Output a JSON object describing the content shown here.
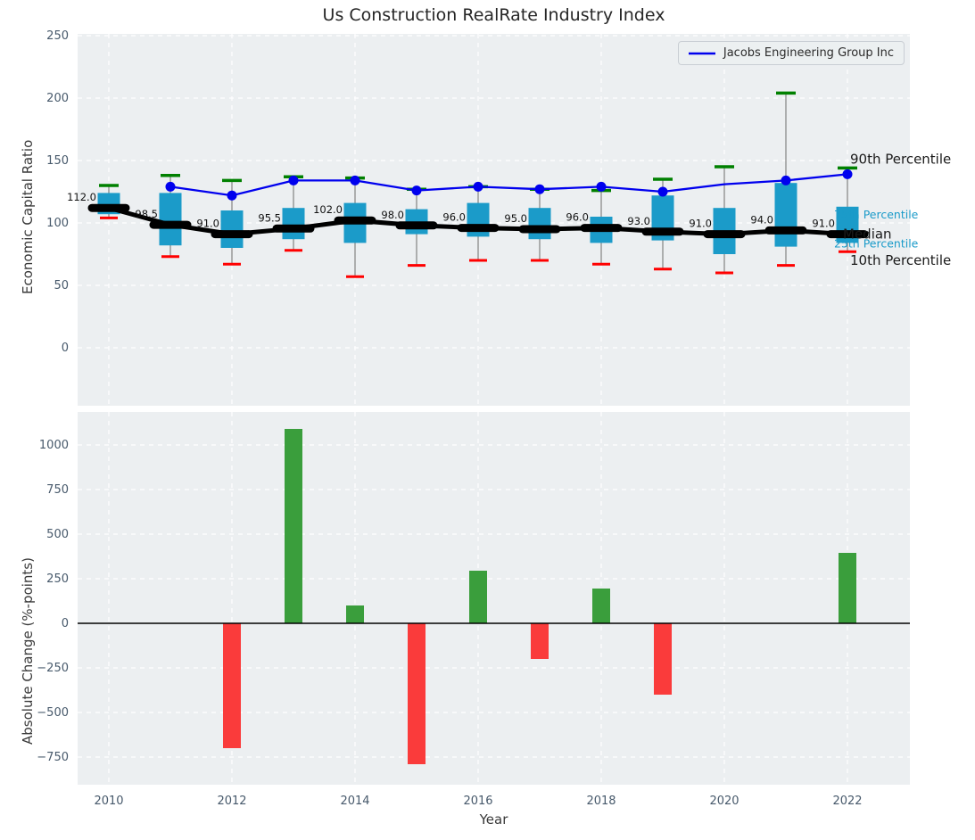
{
  "title": "Us Construction RealRate Industry Index",
  "legend": {
    "series_label": "Jacobs Engineering Group Inc"
  },
  "colors": {
    "plot_background": "#eceff1",
    "grid": "#ffffff",
    "box_fill": "#1b9bc9",
    "whisker": "#8a8a8a",
    "cap_90th": "#008000",
    "cap_10th": "#ff0000",
    "median": "#000000",
    "company_line": "#0000ee",
    "bar_positive": "#3a9e3c",
    "bar_negative": "#fa3b3b",
    "tick_text": "#47596b",
    "annotation_small": "#1b9bc9"
  },
  "chart_data": [
    {
      "type": "boxplot",
      "title": "Us Construction RealRate Industry Index",
      "ylabel": "Economic Capital Ratio",
      "ylim": [
        -46,
        252
      ],
      "yticks": [
        0,
        50,
        100,
        150,
        200,
        250
      ],
      "grid": true,
      "legend_position": "upper right",
      "boxes": [
        {
          "year": 2010,
          "median": 112.0,
          "label": "112.0",
          "p10": 104,
          "p25": 107,
          "p75": 124,
          "p90": 130
        },
        {
          "year": 2011,
          "median": 98.5,
          "label": "98.5",
          "p10": 73,
          "p25": 82,
          "p75": 124,
          "p90": 138
        },
        {
          "year": 2012,
          "median": 91.0,
          "label": "91.0",
          "p10": 67,
          "p25": 80,
          "p75": 110,
          "p90": 134
        },
        {
          "year": 2013,
          "median": 95.5,
          "label": "95.5",
          "p10": 78,
          "p25": 87,
          "p75": 112,
          "p90": 137
        },
        {
          "year": 2014,
          "median": 102.0,
          "label": "102.0",
          "p10": 57,
          "p25": 84,
          "p75": 116,
          "p90": 136
        },
        {
          "year": 2015,
          "median": 98.0,
          "label": "98.0",
          "p10": 66,
          "p25": 91,
          "p75": 111,
          "p90": 127
        },
        {
          "year": 2016,
          "median": 96.0,
          "label": "96.0",
          "p10": 70,
          "p25": 89,
          "p75": 116,
          "p90": 129
        },
        {
          "year": 2017,
          "median": 95.0,
          "label": "95.0",
          "p10": 70,
          "p25": 87,
          "p75": 112,
          "p90": 127
        },
        {
          "year": 2018,
          "median": 96.0,
          "label": "96.0",
          "p10": 67,
          "p25": 84,
          "p75": 105,
          "p90": 126
        },
        {
          "year": 2019,
          "median": 93.0,
          "label": "93.0",
          "p10": 63,
          "p25": 86,
          "p75": 122,
          "p90": 135
        },
        {
          "year": 2020,
          "median": 91.0,
          "label": "91.0",
          "p10": 60,
          "p25": 75,
          "p75": 112,
          "p90": 145
        },
        {
          "year": 2021,
          "median": 94.0,
          "label": "94.0",
          "p10": 66,
          "p25": 81,
          "p75": 132,
          "p90": 204
        },
        {
          "year": 2022,
          "median": 91.0,
          "label": "91.0",
          "p10": 77,
          "p25": 84,
          "p75": 113,
          "p90": 144
        }
      ],
      "series": [
        {
          "name": "Jacobs Engineering Group Inc",
          "points": [
            {
              "year": 2011,
              "value": 129,
              "marker": true
            },
            {
              "year": 2012,
              "value": 122,
              "marker": true
            },
            {
              "year": 2013,
              "value": 134,
              "marker": true
            },
            {
              "year": 2014,
              "value": 134,
              "marker": true
            },
            {
              "year": 2015,
              "value": 126,
              "marker": true
            },
            {
              "year": 2016,
              "value": 129,
              "marker": true
            },
            {
              "year": 2017,
              "value": 127,
              "marker": true
            },
            {
              "year": 2018,
              "value": 129,
              "marker": true
            },
            {
              "year": 2019,
              "value": 125,
              "marker": true
            },
            {
              "year": 2020,
              "value": 131,
              "marker": false
            },
            {
              "year": 2021,
              "value": 134,
              "marker": true
            },
            {
              "year": 2022,
              "value": 139,
              "marker": true
            }
          ]
        }
      ],
      "right_annotations": [
        {
          "text": "90th Percentile",
          "value": 151,
          "style": "big"
        },
        {
          "text": "75th Percentile",
          "value": 107,
          "style": "small"
        },
        {
          "text": "Median",
          "value": 91,
          "style": "big"
        },
        {
          "text": "25th Percentile",
          "value": 84,
          "style": "small"
        },
        {
          "text": "10th Percentile",
          "value": 70,
          "style": "big"
        }
      ]
    },
    {
      "type": "bar",
      "ylabel": "Absolute Change (%-points)",
      "xlabel": "Year",
      "ylim": [
        -905,
        1185
      ],
      "yticks": [
        1000,
        750,
        500,
        250,
        0,
        -250,
        -500,
        -750
      ],
      "xticks": [
        2010,
        2012,
        2014,
        2016,
        2018,
        2020,
        2022
      ],
      "grid": true,
      "categories": [
        2010,
        2011,
        2012,
        2013,
        2014,
        2015,
        2016,
        2017,
        2018,
        2019,
        2020,
        2021,
        2022
      ],
      "values": [
        0,
        0,
        -700,
        1090,
        100,
        -790,
        295,
        -200,
        195,
        -400,
        0,
        0,
        395
      ]
    }
  ]
}
